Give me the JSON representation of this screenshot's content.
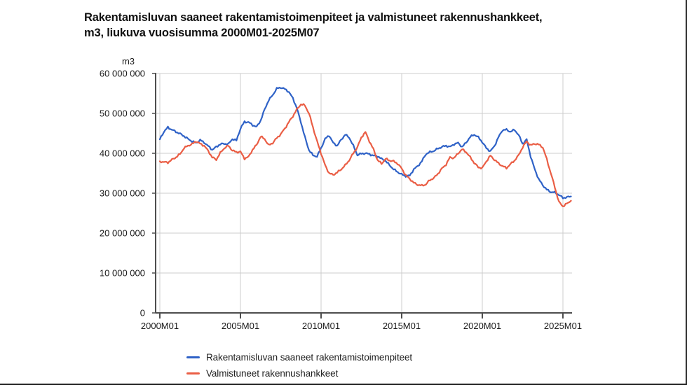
{
  "header": {
    "title_lines": [
      "Rakentamisluvan saaneet rakentamistoimenpiteet ja valmistuneet rakennushankkeet,",
      "m3, liukuva vuosisumma 2000M01-2025M07"
    ]
  },
  "chart_data": {
    "type": "line",
    "title": "Rakentamisluvan saaneet rakentamistoimenpiteet ja valmistuneet rakennushankkeet, m3, liukuva vuosisumma 2000M01-2025M07",
    "unit_label": "m3",
    "ylabel": "m3",
    "xlabel": "",
    "grid": true,
    "legend_position": "bottom-left",
    "ylim": [
      0,
      60000000
    ],
    "y_tick_step": 10000000,
    "y_tick_labels": [
      "0",
      "10 000 000",
      "20 000 000",
      "30 000 000",
      "40 000 000",
      "50 000 000",
      "60 000 000"
    ],
    "x_ticks": [
      {
        "year": 2000,
        "label": "2000M01"
      },
      {
        "year": 2005,
        "label": "2005M01"
      },
      {
        "year": 2010,
        "label": "2010M01"
      },
      {
        "year": 2015,
        "label": "2015M01"
      },
      {
        "year": 2020,
        "label": "2020M01"
      },
      {
        "year": 2025,
        "label": "2025M01"
      }
    ],
    "x_start": 2000.0,
    "x_step_years": 0.25,
    "x_end": 2025.5,
    "axis_color": "#4d4d4d",
    "gridline_color": "#cccccc",
    "series": [
      {
        "name": "Rakentamisluvan saaneet rakentamistoimenpiteet",
        "color": "#2f62c7",
        "values": [
          43500000,
          45400000,
          46500000,
          45900000,
          45400000,
          44900000,
          44300000,
          43600000,
          43000000,
          42600000,
          43300000,
          42700000,
          41800000,
          40900000,
          41600000,
          42300000,
          42400000,
          42300000,
          43600000,
          43200000,
          46200000,
          47900000,
          47800000,
          47100000,
          46600000,
          48200000,
          51000000,
          53300000,
          54600000,
          56200000,
          56500000,
          56100000,
          55400000,
          53800000,
          51300000,
          47800000,
          44000000,
          40800000,
          39500000,
          39200000,
          41300000,
          43600000,
          44500000,
          42600000,
          41900000,
          43400000,
          44700000,
          43900000,
          41900000,
          39600000,
          39900000,
          40000000,
          39800000,
          39400000,
          39300000,
          38600000,
          38100000,
          37000000,
          36000000,
          35300000,
          34700000,
          34300000,
          34400000,
          36000000,
          36800000,
          38000000,
          39800000,
          40300000,
          40600000,
          41200000,
          41600000,
          41900000,
          41600000,
          42300000,
          42600000,
          41600000,
          42700000,
          44100000,
          44700000,
          44000000,
          42800000,
          41300000,
          40500000,
          41800000,
          44000000,
          45800000,
          45900000,
          45400000,
          45900000,
          44600000,
          42400000,
          43400000,
          39200000,
          36000000,
          33500000,
          32000000,
          30900000,
          30300000,
          30200000,
          29600000,
          28800000,
          29000000,
          29200000
        ]
      },
      {
        "name": "Valmistuneet rakennushankkeet",
        "color": "#ea5e45",
        "values": [
          38000000,
          37800000,
          37700000,
          38400000,
          39000000,
          39800000,
          41300000,
          41900000,
          42300000,
          43000000,
          42400000,
          41900000,
          40600000,
          39000000,
          38400000,
          40100000,
          41300000,
          41900000,
          40700000,
          40300000,
          40400000,
          38700000,
          39100000,
          40900000,
          42100000,
          44200000,
          43600000,
          42000000,
          42600000,
          43800000,
          44800000,
          46200000,
          47800000,
          49300000,
          51000000,
          52300000,
          52000000,
          50000000,
          46500000,
          43000000,
          40000000,
          37000000,
          35000000,
          34600000,
          35200000,
          36000000,
          37000000,
          38300000,
          40000000,
          41500000,
          44000000,
          45300000,
          43000000,
          41000000,
          38300000,
          37400000,
          38600000,
          38200000,
          38000000,
          37400000,
          36200000,
          34500000,
          33600000,
          32600000,
          32100000,
          31900000,
          32200000,
          33300000,
          33800000,
          34900000,
          36200000,
          37200000,
          39000000,
          38800000,
          40000000,
          41000000,
          40300000,
          39000000,
          37600000,
          36500000,
          36300000,
          38000000,
          39400000,
          38400000,
          37500000,
          36800000,
          36300000,
          37300000,
          38200000,
          39500000,
          41500000,
          43000000,
          42000000,
          42400000,
          42200000,
          41500000,
          38500000,
          35000000,
          31500000,
          27800000,
          26700000,
          27400000,
          28100000
        ]
      }
    ]
  }
}
